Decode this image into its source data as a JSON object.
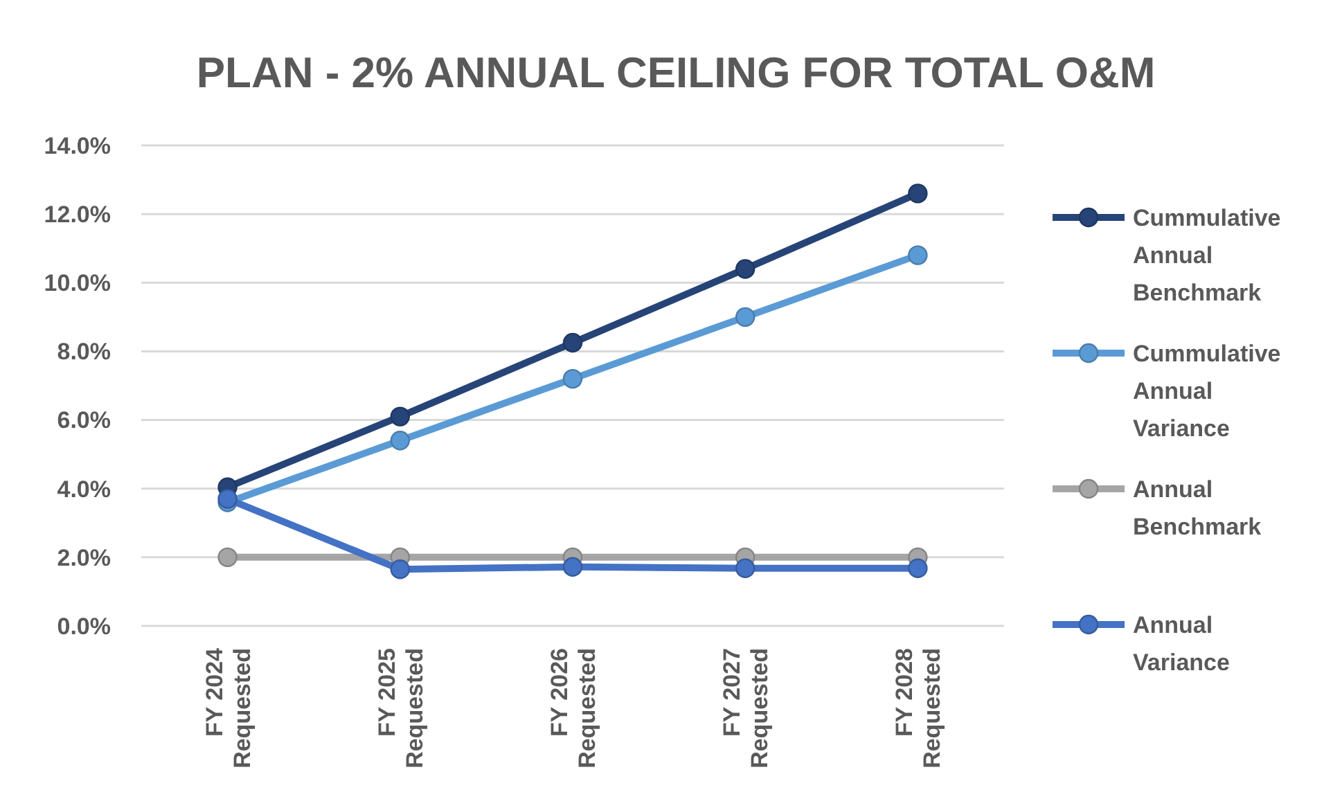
{
  "chart_data": {
    "type": "line",
    "title": "PLAN - 2% ANNUAL CEILING FOR TOTAL O&M",
    "categories": [
      "FY 2024 Requested",
      "FY 2025 Requested",
      "FY 2026 Requested",
      "FY 2027 Requested",
      "FY 2028 Requested"
    ],
    "series": [
      {
        "name": "Cummulative Annual Benchmark",
        "color": "#264478",
        "values": [
          4.04,
          6.1,
          8.25,
          10.4,
          12.6
        ]
      },
      {
        "name": "Cummulative Annual Variance",
        "color": "#5b9bd5",
        "values": [
          3.6,
          5.4,
          7.2,
          9.0,
          10.8
        ]
      },
      {
        "name": "Annual Benchmark",
        "color": "#a5a5a5",
        "values": [
          2,
          2,
          2,
          2,
          2
        ]
      },
      {
        "name": "Annual Variance",
        "color": "#4472c4",
        "values": [
          3.7,
          1.65,
          1.72,
          1.68,
          1.68
        ]
      }
    ],
    "ylim": [
      0,
      14
    ],
    "yticks": [
      {
        "value": 0,
        "label": "0.0%"
      },
      {
        "value": 2,
        "label": "2.0%"
      },
      {
        "value": 4,
        "label": "4.0%"
      },
      {
        "value": 6,
        "label": "6.0%"
      },
      {
        "value": 8,
        "label": "8.0%"
      },
      {
        "value": 10,
        "label": "10.0%"
      },
      {
        "value": 12,
        "label": "12.0%"
      },
      {
        "value": 14,
        "label": "14.0%"
      }
    ],
    "grid": "y",
    "legend": "right",
    "marker": "circle",
    "line_style": "solid"
  }
}
